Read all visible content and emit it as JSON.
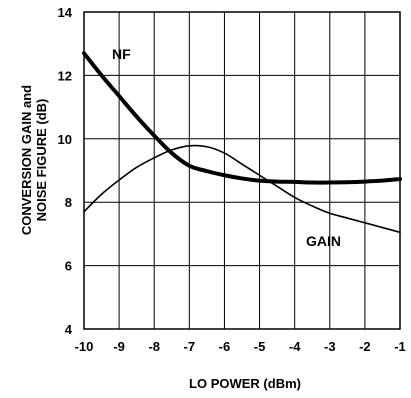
{
  "chart_data": {
    "type": "line",
    "xlabel": "LO POWER (dBm)",
    "ylabel_lines": [
      "CONVERSION GAIN and",
      "NOISE FIGURE (dB)"
    ],
    "xlim": [
      -10,
      -1
    ],
    "ylim": [
      4,
      14
    ],
    "x_ticks": [
      -10,
      -9,
      -8,
      -7,
      -6,
      -5,
      -4,
      -3,
      -2,
      -1
    ],
    "y_ticks": [
      4,
      6,
      8,
      10,
      12,
      14
    ],
    "grid": true,
    "series": [
      {
        "name": "NF",
        "line_weight": "heavy",
        "color": "#000000",
        "points": [
          [
            -10,
            12.7
          ],
          [
            -9.5,
            12.0
          ],
          [
            -9,
            11.35
          ],
          [
            -8.5,
            10.7
          ],
          [
            -8,
            10.1
          ],
          [
            -7.5,
            9.55
          ],
          [
            -7,
            9.15
          ],
          [
            -6.5,
            8.98
          ],
          [
            -6,
            8.85
          ],
          [
            -5.5,
            8.75
          ],
          [
            -5,
            8.68
          ],
          [
            -4.5,
            8.65
          ],
          [
            -4,
            8.64
          ],
          [
            -3.5,
            8.62
          ],
          [
            -3,
            8.62
          ],
          [
            -2.5,
            8.63
          ],
          [
            -2,
            8.65
          ],
          [
            -1.5,
            8.68
          ],
          [
            -1,
            8.73
          ]
        ]
      },
      {
        "name": "GAIN",
        "line_weight": "light",
        "color": "#000000",
        "points": [
          [
            -10,
            7.7
          ],
          [
            -9.5,
            8.25
          ],
          [
            -9,
            8.7
          ],
          [
            -8.5,
            9.1
          ],
          [
            -8,
            9.4
          ],
          [
            -7.5,
            9.65
          ],
          [
            -7,
            9.78
          ],
          [
            -6.5,
            9.75
          ],
          [
            -6,
            9.55
          ],
          [
            -5.5,
            9.2
          ],
          [
            -5,
            8.85
          ],
          [
            -4.5,
            8.5
          ],
          [
            -4,
            8.15
          ],
          [
            -3.5,
            7.88
          ],
          [
            -3,
            7.65
          ],
          [
            -2.5,
            7.5
          ],
          [
            -2,
            7.35
          ],
          [
            -1.5,
            7.2
          ],
          [
            -1,
            7.05
          ]
        ]
      }
    ]
  }
}
